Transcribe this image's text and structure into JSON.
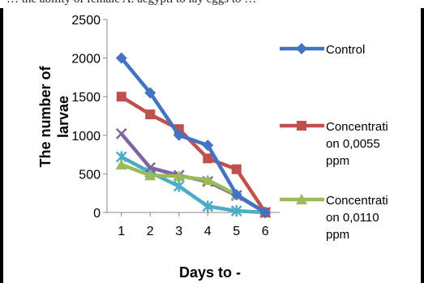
{
  "page": {
    "top_fragment": "… the ability of female A. aegypti to lay eggs to …"
  },
  "chart_data": {
    "type": "line",
    "title": "",
    "xlabel": "Days to -",
    "ylabel": "The number of larvae",
    "x": [
      1,
      2,
      3,
      4,
      5,
      6
    ],
    "ylim": [
      0,
      2500
    ],
    "yticks": [
      0,
      500,
      1000,
      1500,
      2000,
      2500
    ],
    "grid": false,
    "legend_position": "right",
    "series": [
      {
        "name": "Control",
        "values": [
          2000,
          1550,
          1000,
          870,
          230,
          0
        ],
        "color": "#4472C4",
        "marker": "diamond",
        "in_legend": true
      },
      {
        "name": "Concentration 0,0055 ppm",
        "legend_lines": [
          "Concentrati",
          "on  0,0055",
          "ppm"
        ],
        "values": [
          1500,
          1270,
          1080,
          700,
          560,
          0
        ],
        "color": "#C0504D",
        "marker": "square",
        "in_legend": true
      },
      {
        "name": "Concentration 0,0110 ppm",
        "legend_lines": [
          "Concentrati",
          "on 0,0110",
          "ppm"
        ],
        "values": [
          620,
          480,
          470,
          420,
          230,
          0
        ],
        "color": "#9BBB59",
        "marker": "triangle",
        "in_legend": true
      },
      {
        "values": [
          1020,
          580,
          480,
          400,
          220,
          0
        ],
        "color": "#8064A2",
        "marker": "x",
        "in_legend": false
      },
      {
        "values": [
          720,
          520,
          340,
          80,
          20,
          0
        ],
        "color": "#4BACC6",
        "marker": "star",
        "in_legend": false
      }
    ]
  }
}
